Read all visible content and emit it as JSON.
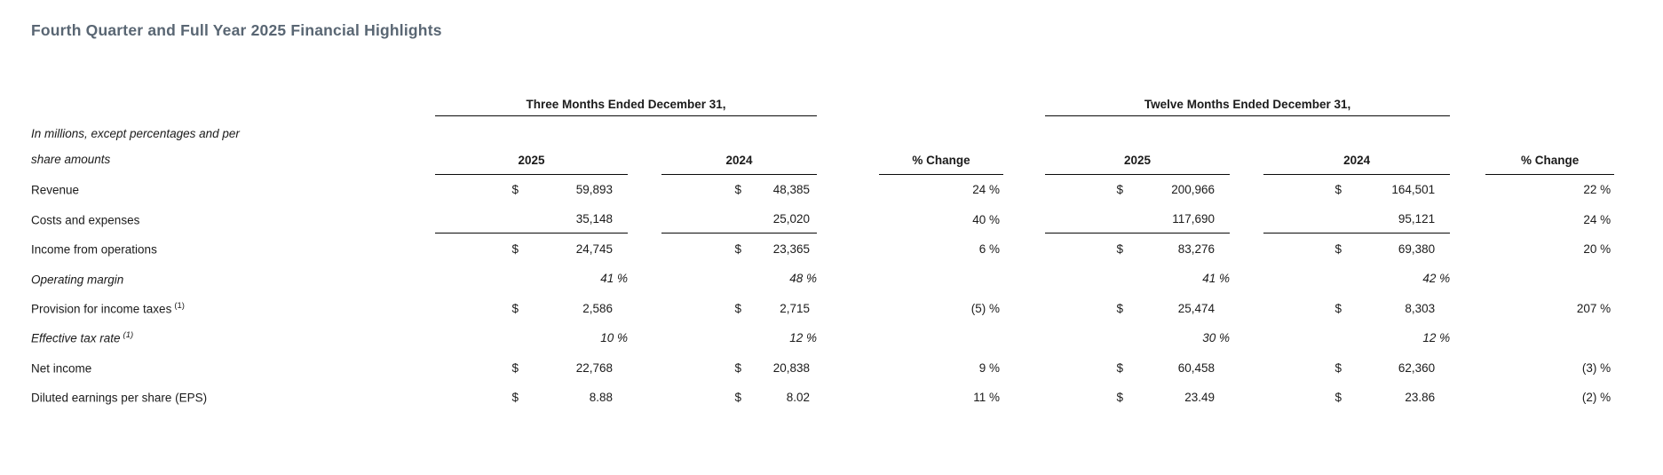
{
  "title": "Fourth Quarter and Full Year 2025 Financial Highlights",
  "table": {
    "note_line1": "In millions, except percentages and per",
    "note_line2": "share amounts",
    "groups": [
      {
        "label": "Three Months Ended December 31,"
      },
      {
        "label": "Twelve Months Ended December 31,"
      }
    ],
    "columns": {
      "y2025": "2025",
      "y2024": "2024",
      "pct_change": "% Change"
    },
    "rows": [
      {
        "label": "Revenue",
        "tm_2025_cur": "$",
        "tm_2025": "59,893",
        "tm_2024_cur": "$",
        "tm_2024": "48,385",
        "tm_chg": "24 %",
        "tw_2025_cur": "$",
        "tw_2025": "200,966",
        "tw_2024_cur": "$",
        "tw_2024": "164,501",
        "tw_chg": "22 %"
      },
      {
        "label": "Costs and expenses",
        "tm_2025": "35,148",
        "tm_2024": "25,020",
        "tm_chg": "40 %",
        "tw_2025": "117,690",
        "tw_2024": "95,121",
        "tw_chg": "24 %"
      },
      {
        "label": "Income from operations",
        "tm_2025_cur": "$",
        "tm_2025": "24,745",
        "tm_2024_cur": "$",
        "tm_2024": "23,365",
        "tm_chg": "6 %",
        "tw_2025_cur": "$",
        "tw_2025": "83,276",
        "tw_2024_cur": "$",
        "tw_2024": "69,380",
        "tw_chg": "20 %"
      },
      {
        "label": "Operating margin",
        "tm_2025": "41 %",
        "tm_2024": "48 %",
        "tw_2025": "41 %",
        "tw_2024": "42 %"
      },
      {
        "label": "Provision for income taxes",
        "sup": "(1)",
        "tm_2025_cur": "$",
        "tm_2025": "2,586",
        "tm_2024_cur": "$",
        "tm_2024": "2,715",
        "tm_chg": "(5) %",
        "tw_2025_cur": "$",
        "tw_2025": "25,474",
        "tw_2024_cur": "$",
        "tw_2024": "8,303",
        "tw_chg": "207 %"
      },
      {
        "label": "Effective tax rate",
        "sup": "(1)",
        "tm_2025": "10 %",
        "tm_2024": "12 %",
        "tw_2025": "30 %",
        "tw_2024": "12 %"
      },
      {
        "label": "Net income",
        "tm_2025_cur": "$",
        "tm_2025": "22,768",
        "tm_2024_cur": "$",
        "tm_2024": "20,838",
        "tm_chg": "9 %",
        "tw_2025_cur": "$",
        "tw_2025": "60,458",
        "tw_2024_cur": "$",
        "tw_2024": "62,360",
        "tw_chg": "(3) %"
      },
      {
        "label": "Diluted earnings per share (EPS)",
        "tm_2025_cur": "$",
        "tm_2025": "8.88",
        "tm_2024_cur": "$",
        "tm_2024": "8.02",
        "tm_chg": "11 %",
        "tw_2025_cur": "$",
        "tw_2025": "23.49",
        "tw_2024_cur": "$",
        "tw_2024": "23.86",
        "tw_chg": "(2) %"
      }
    ]
  },
  "colors": {
    "title": "#596673",
    "text": "#1b1b1b",
    "rule": "#0a0a0a"
  }
}
